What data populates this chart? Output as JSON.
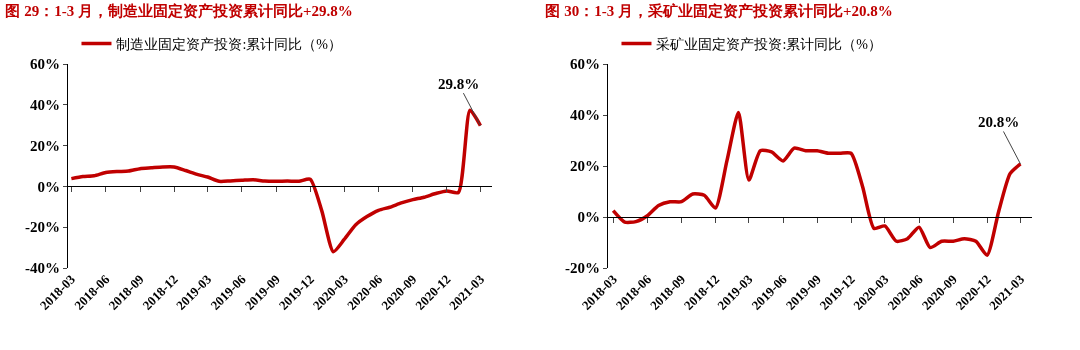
{
  "chart_data": [
    {
      "type": "line",
      "title": "图 29：1-3 月，制造业固定资产投资累计同比+29.8%",
      "x": [
        "2018-03",
        "2018-04",
        "2018-05",
        "2018-06",
        "2018-07",
        "2018-08",
        "2018-09",
        "2018-10",
        "2018-11",
        "2018-12",
        "2019-01",
        "2019-02",
        "2019-03",
        "2019-04",
        "2019-05",
        "2019-06",
        "2019-07",
        "2019-08",
        "2019-09",
        "2019-10",
        "2019-11",
        "2019-12",
        "2020-01",
        "2020-02",
        "2020-03",
        "2020-04",
        "2020-05",
        "2020-06",
        "2020-07",
        "2020-08",
        "2020-09",
        "2020-10",
        "2020-11",
        "2020-12",
        "2021-01",
        "2021-02",
        "2021-03"
      ],
      "series": [
        {
          "name": "制造业固定资产投资:累计同比（%）",
          "color": "#c00000",
          "values": [
            3.8,
            4.8,
            5.2,
            6.8,
            7.3,
            7.5,
            8.7,
            9.1,
            9.5,
            9.5,
            7.8,
            5.9,
            4.6,
            2.5,
            2.7,
            3.0,
            3.3,
            2.6,
            2.5,
            2.6,
            2.5,
            3.5,
            -12,
            -32,
            -26,
            -18.8,
            -14.8,
            -11.7,
            -10.2,
            -8.1,
            -6.5,
            -5.3,
            -3.5,
            -2.2,
            -3,
            37.3,
            29.8
          ]
        }
      ],
      "xlim": [
        "2018-02-20",
        "2021-04-01"
      ],
      "xticks": [
        {
          "value": "2018-03",
          "label": "2018-03"
        },
        {
          "value": "2018-06",
          "label": "2018-06"
        },
        {
          "value": "2018-09",
          "label": "2018-09"
        },
        {
          "value": "2018-12",
          "label": "2018-12"
        },
        {
          "value": "2019-03",
          "label": "2019-03"
        },
        {
          "value": "2019-06",
          "label": "2019-06"
        },
        {
          "value": "2019-09",
          "label": "2019-09"
        },
        {
          "value": "2019-12",
          "label": "2019-12"
        },
        {
          "value": "2020-03",
          "label": "2020-03"
        },
        {
          "value": "2020-06",
          "label": "2020-06"
        },
        {
          "value": "2020-09",
          "label": "2020-09"
        },
        {
          "value": "2020-12",
          "label": "2020-12"
        },
        {
          "value": "2021-03",
          "label": "2021-03"
        }
      ],
      "ylim": [
        -40,
        60
      ],
      "yticks": [
        {
          "value": -40,
          "label": "-40%"
        },
        {
          "value": -20,
          "label": "-20%"
        },
        {
          "value": 0,
          "label": "0%"
        },
        {
          "value": 20,
          "label": "20%"
        },
        {
          "value": 40,
          "label": "40%"
        },
        {
          "value": 60,
          "label": "60%"
        }
      ],
      "annotations": [
        {
          "text": "29.8%",
          "x": "2021-03",
          "y": 29.8
        }
      ],
      "ref_lines": [
        {
          "axis": "y",
          "value": 0,
          "color": "#000000"
        }
      ],
      "legend": "top",
      "grid": false,
      "marker": "none",
      "line_style": "solid"
    },
    {
      "type": "line",
      "title": "图 30：1-3 月，采矿业固定资产投资累计同比+20.8%",
      "x": [
        "2018-03",
        "2018-04",
        "2018-05",
        "2018-06",
        "2018-07",
        "2018-08",
        "2018-09",
        "2018-10",
        "2018-11",
        "2018-12",
        "2019-01",
        "2019-02",
        "2019-03",
        "2019-04",
        "2019-05",
        "2019-06",
        "2019-07",
        "2019-08",
        "2019-09",
        "2019-10",
        "2019-11",
        "2019-12",
        "2020-01",
        "2020-02",
        "2020-03",
        "2020-04",
        "2020-05",
        "2020-06",
        "2020-07",
        "2020-08",
        "2020-09",
        "2020-10",
        "2020-11",
        "2020-12",
        "2021-01",
        "2021-02",
        "2021-03"
      ],
      "series": [
        {
          "name": "采矿业固定资产投资:累计同比（%）",
          "color": "#c00000",
          "values": [
            2.5,
            -2.0,
            -1.8,
            0.5,
            4.5,
            6.0,
            6.0,
            9.0,
            8.5,
            3.5,
            22,
            41,
            14.5,
            26,
            25.5,
            22,
            27,
            26,
            26,
            25,
            25,
            25,
            12,
            -4.5,
            -3.5,
            -9.5,
            -8.5,
            -4,
            -12,
            -9.5,
            -9.5,
            -8.5,
            -9.5,
            -15,
            2,
            17,
            20.8
          ]
        }
      ],
      "xlim": [
        "2018-02-15",
        "2021-04-01"
      ],
      "xticks": [
        {
          "value": "2018-03",
          "label": "2018-03"
        },
        {
          "value": "2018-06",
          "label": "2018-06"
        },
        {
          "value": "2018-09",
          "label": "2018-09"
        },
        {
          "value": "2018-12",
          "label": "2018-12"
        },
        {
          "value": "2019-03",
          "label": "2019-03"
        },
        {
          "value": "2019-06",
          "label": "2019-06"
        },
        {
          "value": "2019-09",
          "label": "2019-09"
        },
        {
          "value": "2019-12",
          "label": "2019-12"
        },
        {
          "value": "2020-03",
          "label": "2020-03"
        },
        {
          "value": "2020-06",
          "label": "2020-06"
        },
        {
          "value": "2020-09",
          "label": "2020-09"
        },
        {
          "value": "2020-12",
          "label": "2020-12"
        },
        {
          "value": "2021-03",
          "label": "2021-03"
        }
      ],
      "ylim": [
        -20,
        60
      ],
      "yticks": [
        {
          "value": -20,
          "label": "-20%"
        },
        {
          "value": 0,
          "label": "0%"
        },
        {
          "value": 20,
          "label": "20%"
        },
        {
          "value": 40,
          "label": "40%"
        },
        {
          "value": 60,
          "label": "60%"
        }
      ],
      "annotations": [
        {
          "text": "20.8%",
          "x": "2021-03",
          "y": 20.8
        }
      ],
      "ref_lines": [
        {
          "axis": "y",
          "value": 0,
          "color": "#000000"
        }
      ],
      "legend": "top",
      "grid": false,
      "marker": "none",
      "line_style": "solid"
    }
  ]
}
